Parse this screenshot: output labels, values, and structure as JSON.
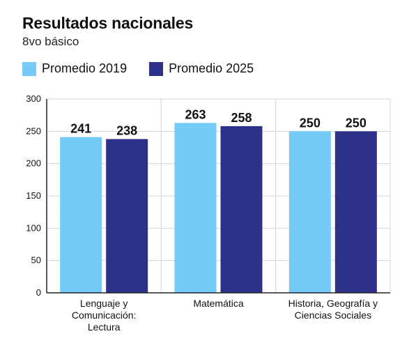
{
  "chart_data": {
    "type": "bar",
    "title": "Resultados nacionales",
    "subtitle": "8vo básico",
    "categories": [
      [
        "Lenguaje y",
        "Comunicación:",
        "Lectura"
      ],
      [
        "Matemática"
      ],
      [
        "Historia, Geografía y",
        "Ciencias Sociales"
      ]
    ],
    "series": [
      {
        "name": "Promedio 2019",
        "color": "#74cbf7",
        "values": [
          241,
          263,
          250
        ]
      },
      {
        "name": "Promedio 2025",
        "color": "#2e3189",
        "values": [
          238,
          258,
          250
        ]
      }
    ],
    "ylim": [
      0,
      300
    ],
    "yticks": [
      0,
      50,
      100,
      150,
      200,
      250,
      300
    ],
    "grid": true,
    "legend_position": "top-left"
  }
}
